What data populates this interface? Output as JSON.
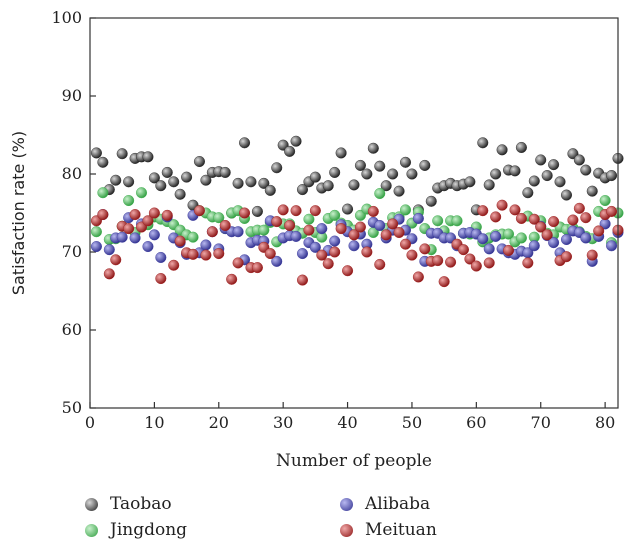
{
  "chart_data": {
    "type": "scatter",
    "xlabel": "Number of people",
    "ylabel": "Satisfaction rate (%)",
    "xlim": [
      0,
      82
    ],
    "ylim": [
      50,
      100
    ],
    "x_ticks": [
      "0",
      "10",
      "20",
      "30",
      "40",
      "50",
      "60",
      "70",
      "80"
    ],
    "y_ticks": [
      "50",
      "60",
      "70",
      "80",
      "90",
      "100"
    ],
    "grid": false,
    "legend_position": "bottom",
    "series": [
      {
        "name": "Taobao",
        "color": "#222222",
        "x": [
          1,
          2,
          3,
          4,
          5,
          6,
          7,
          8,
          9,
          10,
          11,
          12,
          13,
          14,
          15,
          16,
          17,
          18,
          19,
          20,
          21,
          22,
          23,
          24,
          25,
          26,
          27,
          28,
          29,
          30,
          31,
          32,
          33,
          34,
          35,
          36,
          37,
          38,
          39,
          40,
          41,
          42,
          43,
          44,
          45,
          46,
          47,
          48,
          49,
          50,
          51,
          52,
          53,
          54,
          55,
          56,
          57,
          58,
          59,
          60,
          61,
          62,
          63,
          64,
          65,
          66,
          67,
          68,
          69,
          70,
          71,
          72,
          73,
          74,
          75,
          76,
          77,
          78,
          79,
          80,
          81,
          82
        ],
        "y": [
          82.7,
          81.5,
          78.0,
          79.2,
          82.6,
          79.0,
          82.0,
          82.2,
          82.2,
          79.5,
          78.5,
          80.2,
          79.0,
          77.4,
          79.6,
          76.0,
          81.6,
          79.2,
          80.2,
          80.3,
          80.2,
          75.0,
          78.8,
          84.0,
          79.0,
          75.2,
          78.8,
          77.9,
          80.8,
          83.7,
          82.9,
          84.2,
          78.0,
          79.0,
          79.6,
          78.2,
          78.5,
          80.2,
          82.7,
          75.5,
          78.6,
          81.1,
          80.0,
          83.3,
          81.0,
          78.5,
          80.0,
          77.8,
          81.5,
          80.0,
          75.4,
          81.1,
          76.5,
          78.2,
          78.5,
          78.8,
          78.5,
          78.7,
          79.0,
          75.4,
          84.0,
          78.6,
          80.0,
          83.1,
          80.5,
          80.4,
          83.4,
          77.6,
          79.1,
          81.8,
          79.8,
          81.2,
          79.0,
          77.3,
          82.6,
          81.8,
          80.5,
          77.8,
          80.1,
          79.5,
          79.8,
          82.0
        ]
      },
      {
        "name": "Jingdong",
        "color": "#3aae4a",
        "x": [
          1,
          2,
          3,
          4,
          5,
          6,
          7,
          8,
          9,
          10,
          11,
          12,
          13,
          14,
          15,
          16,
          17,
          18,
          19,
          20,
          21,
          22,
          23,
          24,
          25,
          26,
          27,
          28,
          29,
          30,
          31,
          32,
          33,
          34,
          35,
          36,
          37,
          38,
          39,
          40,
          41,
          42,
          43,
          44,
          45,
          46,
          47,
          48,
          49,
          50,
          51,
          52,
          53,
          54,
          55,
          56,
          57,
          58,
          59,
          60,
          61,
          62,
          63,
          64,
          65,
          66,
          67,
          68,
          69,
          70,
          71,
          72,
          73,
          74,
          75,
          76,
          77,
          78,
          79,
          80,
          81,
          82
        ],
        "y": [
          72.6,
          77.6,
          71.6,
          71.7,
          73.3,
          76.6,
          72.5,
          77.6,
          73.5,
          74.5,
          74.2,
          73.9,
          73.5,
          72.8,
          72.2,
          71.9,
          75.3,
          75.0,
          74.5,
          74.4,
          73.0,
          75.0,
          75.3,
          74.3,
          72.6,
          72.8,
          72.8,
          73.8,
          71.3,
          73.6,
          73.6,
          72.7,
          72.4,
          74.2,
          72.5,
          71.9,
          74.3,
          74.7,
          73.7,
          73.4,
          72.8,
          74.7,
          75.5,
          72.5,
          77.5,
          73.0,
          74.4,
          74.5,
          75.4,
          73.7,
          75.1,
          73.0,
          70.3,
          74.0,
          72.7,
          74.0,
          74.0,
          72.4,
          72.3,
          73.2,
          71.3,
          71.8,
          72.2,
          72.3,
          72.3,
          71.3,
          71.8,
          74.6,
          71.9,
          74.0,
          72.4,
          72.2,
          73.2,
          72.9,
          73.1,
          72.6,
          72.0,
          71.7,
          75.2,
          76.6,
          71.2,
          75.0
        ]
      },
      {
        "name": "Alibaba",
        "color": "#3a3a9e",
        "x": [
          1,
          2,
          3,
          4,
          5,
          6,
          7,
          8,
          9,
          10,
          11,
          12,
          13,
          14,
          15,
          16,
          17,
          18,
          19,
          20,
          21,
          22,
          23,
          24,
          25,
          26,
          27,
          28,
          29,
          30,
          31,
          32,
          33,
          34,
          35,
          36,
          37,
          38,
          39,
          40,
          41,
          42,
          43,
          44,
          45,
          46,
          47,
          48,
          49,
          50,
          51,
          52,
          53,
          54,
          55,
          56,
          57,
          58,
          59,
          60,
          61,
          62,
          63,
          64,
          65,
          66,
          67,
          68,
          69,
          70,
          71,
          72,
          73,
          74,
          75,
          76,
          77,
          78,
          79,
          80,
          81,
          82
        ],
        "y": [
          70.7,
          74.8,
          70.3,
          71.8,
          71.9,
          74.4,
          71.8,
          73.6,
          70.7,
          72.2,
          69.3,
          74.5,
          71.8,
          71.2,
          69.7,
          74.7,
          69.9,
          70.9,
          72.6,
          70.4,
          73.0,
          72.6,
          72.6,
          69.0,
          71.2,
          71.5,
          71.4,
          74.0,
          68.8,
          71.8,
          72.1,
          72.0,
          69.8,
          71.2,
          70.6,
          73.0,
          70.2,
          71.4,
          73.5,
          72.6,
          70.8,
          72.3,
          71.0,
          73.8,
          73.4,
          71.8,
          72.8,
          74.2,
          72.8,
          71.7,
          74.3,
          68.8,
          72.4,
          72.4,
          71.8,
          71.8,
          70.8,
          72.4,
          72.5,
          72.3,
          71.7,
          70.4,
          72.0,
          70.4,
          69.9,
          69.7,
          70.1,
          69.9,
          70.8,
          73.3,
          72.1,
          71.2,
          69.9,
          71.6,
          72.7,
          72.5,
          71.8,
          68.8,
          72.0,
          73.6,
          70.8,
          72.5
        ]
      },
      {
        "name": "Meituan",
        "color": "#9e1a1a",
        "x": [
          1,
          2,
          3,
          4,
          5,
          6,
          7,
          8,
          9,
          10,
          11,
          12,
          13,
          14,
          15,
          16,
          17,
          18,
          19,
          20,
          21,
          22,
          23,
          24,
          25,
          26,
          27,
          28,
          29,
          30,
          31,
          32,
          33,
          34,
          35,
          36,
          37,
          38,
          39,
          40,
          41,
          42,
          43,
          44,
          45,
          46,
          47,
          48,
          49,
          50,
          51,
          52,
          53,
          54,
          55,
          56,
          57,
          58,
          59,
          60,
          61,
          62,
          63,
          64,
          65,
          66,
          67,
          68,
          69,
          70,
          71,
          72,
          73,
          74,
          75,
          76,
          77,
          78,
          79,
          80,
          81,
          82
        ],
        "y": [
          74.0,
          74.8,
          67.2,
          69.0,
          73.3,
          73.0,
          74.8,
          73.2,
          74.0,
          75.0,
          66.6,
          74.7,
          68.3,
          71.4,
          69.9,
          69.7,
          75.3,
          69.6,
          72.6,
          69.8,
          73.4,
          66.5,
          68.6,
          75.0,
          68.0,
          68.0,
          70.6,
          69.8,
          73.9,
          75.4,
          73.4,
          75.3,
          66.4,
          72.8,
          75.3,
          69.6,
          68.5,
          70.0,
          73.0,
          67.6,
          72.2,
          73.2,
          70.0,
          75.2,
          68.4,
          72.2,
          73.6,
          72.5,
          71.0,
          69.6,
          66.8,
          70.4,
          68.8,
          68.9,
          66.2,
          68.7,
          71.0,
          70.3,
          69.1,
          68.2,
          75.3,
          68.6,
          74.5,
          76.0,
          70.2,
          75.4,
          74.3,
          68.6,
          74.2,
          73.2,
          72.2,
          73.9,
          68.9,
          69.4,
          74.1,
          75.6,
          74.4,
          69.6,
          72.7,
          74.8,
          75.2,
          72.8
        ]
      }
    ]
  }
}
